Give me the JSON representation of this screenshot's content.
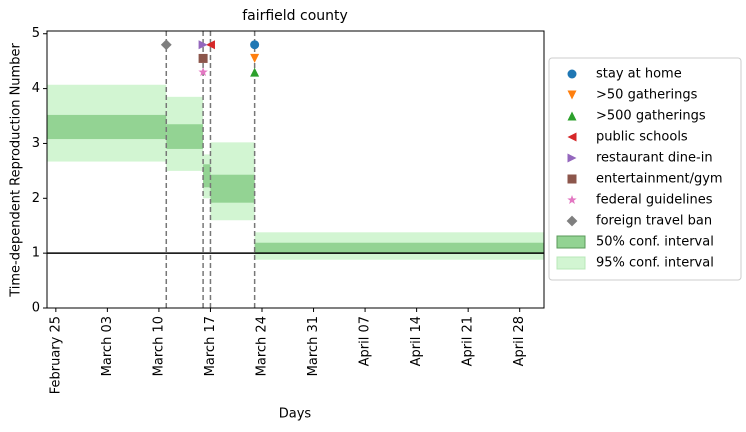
{
  "chart_data": {
    "type": "step-band",
    "title": "fairfield county",
    "x_label": "Days",
    "y_label": "Time-dependent Reproduction Number",
    "xlim": [
      -1.2,
      66.3
    ],
    "xticks": [
      {
        "value": 0,
        "label": "February 25"
      },
      {
        "value": 7,
        "label": "March 03"
      },
      {
        "value": 14,
        "label": "March 10"
      },
      {
        "value": 21,
        "label": "March 17"
      },
      {
        "value": 28,
        "label": "March 24"
      },
      {
        "value": 35,
        "label": "March 31"
      },
      {
        "value": 42,
        "label": "April 07"
      },
      {
        "value": 49,
        "label": "April 14"
      },
      {
        "value": 56,
        "label": "April 21"
      },
      {
        "value": 63,
        "label": "April 28"
      }
    ],
    "ylim": [
      0,
      5.05
    ],
    "yticks": [
      0,
      1,
      2,
      3,
      4,
      5
    ],
    "reference_line": 1,
    "intervention_lines": [
      15,
      20,
      21,
      27
    ],
    "bands": [
      {
        "name": "95% conf. interval",
        "color": "#d2f5d2",
        "edges": [
          -1.2,
          15,
          20,
          21,
          27,
          66.3
        ],
        "low": [
          2.67,
          2.5,
          2.0,
          1.6,
          0.88
        ],
        "high": [
          4.07,
          3.85,
          2.8,
          3.02,
          1.38
        ]
      },
      {
        "name": "50% conf. interval",
        "color": "#93d393",
        "edges": [
          -1.2,
          15,
          20,
          21,
          27,
          66.3
        ],
        "low": [
          3.08,
          2.9,
          2.2,
          1.92,
          1.0
        ],
        "high": [
          3.52,
          3.35,
          2.62,
          2.43,
          1.19
        ]
      }
    ],
    "series": [
      {
        "name": "stay at home",
        "color": "#1f77b4",
        "marker": "circle",
        "x": [
          27
        ],
        "values": [
          4.8
        ]
      },
      {
        "name": ">50 gatherings",
        "color": "#ff7f0e",
        "marker": "triangle-down",
        "x": [
          27
        ],
        "values": [
          4.55
        ]
      },
      {
        "name": ">500 gatherings",
        "color": "#2ca02c",
        "marker": "triangle-up",
        "x": [
          27
        ],
        "values": [
          4.3
        ]
      },
      {
        "name": "public schools",
        "color": "#d62728",
        "marker": "triangle-left",
        "x": [
          21
        ],
        "values": [
          4.8
        ]
      },
      {
        "name": "restaurant dine-in",
        "color": "#9467bd",
        "marker": "triangle-right",
        "x": [
          20
        ],
        "values": [
          4.8
        ]
      },
      {
        "name": "entertainment/gym",
        "color": "#8c564b",
        "marker": "square",
        "x": [
          20
        ],
        "values": [
          4.55
        ]
      },
      {
        "name": "federal guidelines",
        "color": "#e377c2",
        "marker": "star",
        "x": [
          20
        ],
        "values": [
          4.3
        ]
      },
      {
        "name": "foreign travel ban",
        "color": "#7f7f7f",
        "marker": "diamond",
        "x": [
          15
        ],
        "values": [
          4.8
        ]
      }
    ]
  }
}
